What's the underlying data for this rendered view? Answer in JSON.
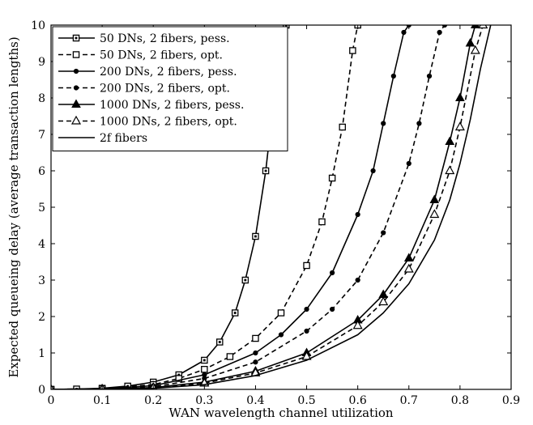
{
  "chart_data": {
    "type": "line",
    "title": "",
    "xlabel": "WAN wavelength channel utilization",
    "ylabel": "Expected queueing delay (average transaction lengths)",
    "xlim": [
      0,
      0.9
    ],
    "ylim": [
      0,
      10
    ],
    "xticks": [
      "0",
      "0.1",
      "0.2",
      "0.3",
      "0.4",
      "0.5",
      "0.6",
      "0.7",
      "0.8",
      "0.9"
    ],
    "yticks": [
      "0",
      "1",
      "2",
      "3",
      "4",
      "5",
      "6",
      "7",
      "8",
      "9",
      "10"
    ],
    "grid": false,
    "legend_position": "top-left",
    "series": [
      {
        "name": "50 DNs, 2 fibers, pess.",
        "style": "solid",
        "marker": "square",
        "x": [
          0,
          0.05,
          0.1,
          0.15,
          0.2,
          0.25,
          0.3,
          0.33,
          0.36,
          0.38,
          0.4,
          0.42,
          0.44,
          0.46
        ],
        "y": [
          0,
          0.01,
          0.03,
          0.09,
          0.2,
          0.4,
          0.8,
          1.3,
          2.1,
          3.0,
          4.2,
          6.0,
          8.5,
          10.0
        ]
      },
      {
        "name": "50 DNs, 2 fibers, opt.",
        "style": "dashed",
        "marker": "square-open",
        "x": [
          0,
          0.1,
          0.2,
          0.25,
          0.3,
          0.35,
          0.4,
          0.45,
          0.5,
          0.53,
          0.55,
          0.57,
          0.59,
          0.6
        ],
        "y": [
          0,
          0.02,
          0.13,
          0.3,
          0.55,
          0.9,
          1.4,
          2.1,
          3.4,
          4.6,
          5.8,
          7.2,
          9.3,
          10.0
        ]
      },
      {
        "name": "200 DNs, 2 fibers, pess.",
        "style": "solid",
        "marker": "dot",
        "x": [
          0,
          0.1,
          0.2,
          0.3,
          0.4,
          0.45,
          0.5,
          0.55,
          0.6,
          0.63,
          0.65,
          0.67,
          0.69,
          0.7
        ],
        "y": [
          0,
          0.02,
          0.1,
          0.4,
          1.0,
          1.5,
          2.2,
          3.2,
          4.8,
          6.0,
          7.3,
          8.6,
          9.8,
          10.0
        ]
      },
      {
        "name": "200 DNs, 2 fibers, opt.",
        "style": "dashed",
        "marker": "dot",
        "x": [
          0,
          0.1,
          0.2,
          0.3,
          0.4,
          0.5,
          0.55,
          0.6,
          0.65,
          0.7,
          0.72,
          0.74,
          0.76,
          0.77
        ],
        "y": [
          0,
          0.01,
          0.07,
          0.3,
          0.75,
          1.6,
          2.2,
          3.0,
          4.3,
          6.2,
          7.3,
          8.6,
          9.8,
          10.0
        ]
      },
      {
        "name": "1000 DNs, 2 fibers, pess.",
        "style": "solid",
        "marker": "triangle",
        "x": [
          0,
          0.1,
          0.2,
          0.3,
          0.4,
          0.5,
          0.6,
          0.65,
          0.7,
          0.75,
          0.78,
          0.8,
          0.82,
          0.83
        ],
        "y": [
          0,
          0.01,
          0.05,
          0.2,
          0.5,
          1.0,
          1.9,
          2.6,
          3.6,
          5.2,
          6.8,
          8.0,
          9.5,
          10.0
        ]
      },
      {
        "name": "1000 DNs, 2 fibers, opt.",
        "style": "dashed",
        "marker": "triangle-open",
        "x": [
          0,
          0.1,
          0.2,
          0.3,
          0.4,
          0.5,
          0.6,
          0.65,
          0.7,
          0.75,
          0.78,
          0.8,
          0.83,
          0.845
        ],
        "y": [
          0,
          0.01,
          0.04,
          0.17,
          0.45,
          0.9,
          1.75,
          2.4,
          3.3,
          4.8,
          6.0,
          7.2,
          9.3,
          10.0
        ]
      },
      {
        "name": "2f fibers",
        "style": "solid",
        "marker": "none",
        "x": [
          0,
          0.1,
          0.2,
          0.3,
          0.4,
          0.5,
          0.6,
          0.65,
          0.7,
          0.75,
          0.78,
          0.8,
          0.82,
          0.84,
          0.86
        ],
        "y": [
          0,
          0.01,
          0.03,
          0.13,
          0.38,
          0.8,
          1.5,
          2.1,
          2.9,
          4.1,
          5.2,
          6.2,
          7.4,
          8.8,
          10.0
        ]
      }
    ]
  }
}
